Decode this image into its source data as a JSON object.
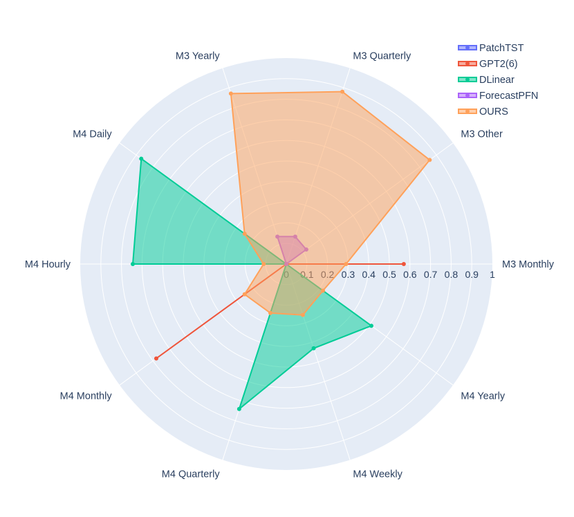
{
  "chart_data": {
    "type": "radar",
    "categories": [
      "M3 Monthly",
      "M3 Other",
      "M3 Quarterly",
      "M3 Yearly",
      "M4 Daily",
      "M4 Hourly",
      "M4 Monthly",
      "M4 Quarterly",
      "M4 Weekly",
      "M4 Yearly"
    ],
    "radial_range": [
      0,
      1
    ],
    "radial_ticks": [
      "0",
      "0.1",
      "0.2",
      "0.3",
      "0.4",
      "0.5",
      "0.6",
      "0.7",
      "0.8",
      "0.9",
      "1"
    ],
    "legend_position": "top-right",
    "series": [
      {
        "name": "PatchTST",
        "color": "#636efa",
        "values": [
          0.0,
          0.0,
          0.0,
          0.0,
          0.0,
          0.0,
          0.0,
          0.0,
          0.0,
          0.0
        ]
      },
      {
        "name": "GPT2(6)",
        "color": "#ef553b",
        "values": [
          0.57,
          0.0,
          0.0,
          0.0,
          0.0,
          0.0,
          0.78,
          0.0,
          0.0,
          0.0
        ]
      },
      {
        "name": "DLinear",
        "color": "#00cc96",
        "values": [
          0.0,
          0.0,
          0.0,
          0.0,
          0.87,
          0.745,
          0.0,
          0.74,
          0.43,
          0.51
        ]
      },
      {
        "name": "ForecastPFN",
        "color": "#ab63fa",
        "values": [
          0.0,
          0.12,
          0.14,
          0.14,
          0.0,
          0.0,
          0.0,
          0.0,
          0.0,
          0.0
        ]
      },
      {
        "name": "OURS",
        "color": "#ffa15a",
        "values": [
          0.29,
          0.86,
          0.88,
          0.87,
          0.25,
          0.11,
          0.25,
          0.25,
          0.26,
          0.22
        ]
      }
    ]
  }
}
